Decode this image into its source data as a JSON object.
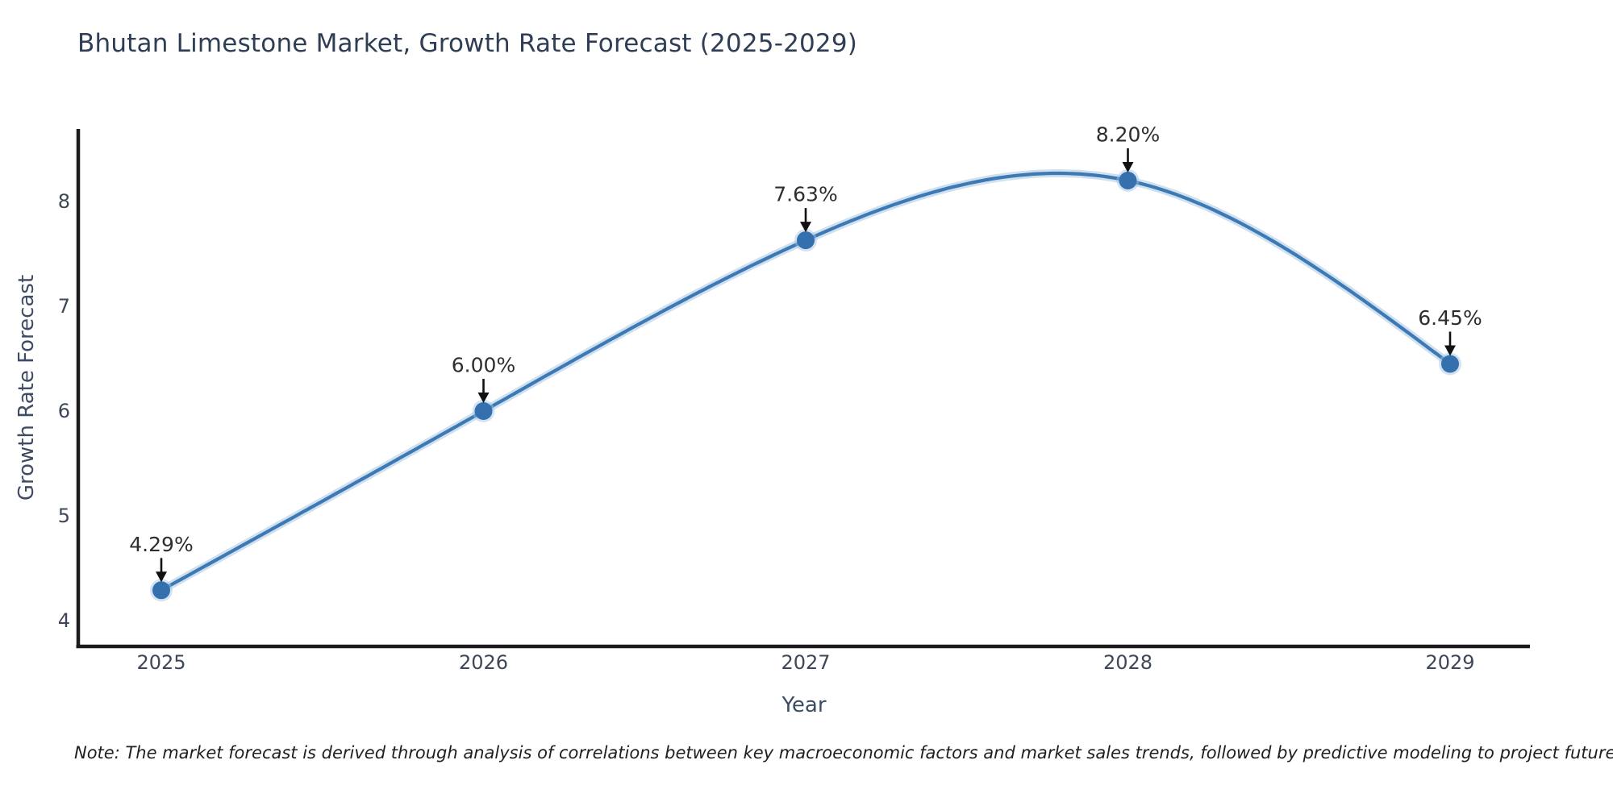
{
  "page": {
    "background": "#ffffff"
  },
  "title": "Bhutan Limestone Market, Growth Rate Forecast (2025-2029)",
  "note": "Note: The market forecast is derived through analysis of correlations between key macroeconomic factors and market sales trends, followed by predictive modeling to project future sales.",
  "chart_data": {
    "type": "line",
    "title": "Bhutan Limestone Market, Growth Rate Forecast (2025-2029)",
    "x": [
      2025,
      2026,
      2027,
      2028,
      2029
    ],
    "x_tick_labels": [
      "2025",
      "2026",
      "2027",
      "2028",
      "2029"
    ],
    "series": [
      {
        "name": "Growth Rate Forecast",
        "values": [
          4.29,
          6.0,
          7.63,
          8.2,
          6.45
        ]
      }
    ],
    "point_labels": [
      "4.29%",
      "6.00%",
      "7.63%",
      "8.20%",
      "6.45%"
    ],
    "xlabel": "Year",
    "ylabel": "Growth Rate Forecast",
    "y_ticks": [
      4,
      5,
      6,
      7,
      8
    ],
    "ylim": [
      3.75,
      8.68
    ],
    "grid": false,
    "legend": false,
    "curve_style": "smooth-cubic-spline",
    "marker": "circle",
    "annotations_arrow": "down",
    "colors": {
      "line": "#3c79b5",
      "line_halo": "#a7c6e2",
      "marker": "#3470ae",
      "marker_halo": "#9fc2e0",
      "spine": "#1b1b1b",
      "arrow": "#111111",
      "title_text": "#2f3d55",
      "tick_text": "#3d4758",
      "axis_label_text": "#3d4b63",
      "annotation_text": "#2e2e2e",
      "note_text": "#1f1f1f",
      "background": "#ffffff"
    }
  }
}
